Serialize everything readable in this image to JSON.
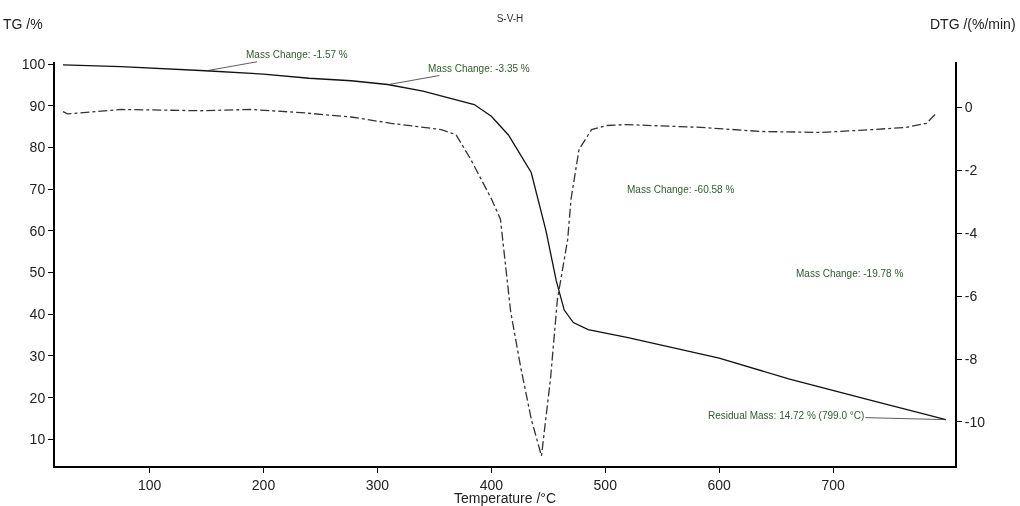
{
  "chart_data": {
    "type": "line",
    "title": "S-V-H",
    "xlabel": "Temperature /°C",
    "ylabel": "TG /%",
    "y2label": "DTG /(%/min)",
    "xlim": [
      17,
      807
    ],
    "xticks": [
      100,
      200,
      300,
      400,
      500,
      600,
      700
    ],
    "ylim": [
      3.6,
      100.5
    ],
    "yticks": [
      10,
      20,
      30,
      40,
      50,
      60,
      70,
      80,
      90,
      100
    ],
    "y2lim": [
      -11.4,
      1.45
    ],
    "y2ticks": [
      -10,
      -8,
      -6,
      -4,
      -2,
      0
    ],
    "grid": false,
    "marker": "none",
    "series": [
      {
        "color": "#111111",
        "line_style": "solid",
        "x": [
          24,
          75,
          149,
          200,
          240,
          277,
          309,
          340,
          385,
          400,
          415,
          435,
          448,
          457,
          464,
          472,
          485,
          520,
          600,
          661,
          730,
          799
        ],
        "values": [
          99.8,
          99.4,
          98.4,
          97.6,
          96.6,
          96.0,
          95.1,
          93.5,
          90.3,
          87.5,
          83,
          74,
          60,
          48,
          41,
          38,
          36.3,
          34.4,
          29.5,
          24.5,
          19.6,
          14.72
        ]
      },
      {
        "color": "#333333",
        "line_style": "dashed",
        "axis": "y2",
        "x": [
          24,
          28,
          75,
          145,
          189,
          233,
          277,
          312,
          356,
          369,
          382,
          400,
          408,
          417,
          426,
          435,
          444,
          452,
          458,
          467,
          470,
          477,
          488,
          501,
          518,
          584,
          637,
          690,
          734,
          764,
          782,
          790
        ],
        "values": [
          -0.13,
          -0.2,
          -0.06,
          -0.1,
          -0.06,
          -0.16,
          -0.3,
          -0.5,
          -0.7,
          -0.86,
          -1.65,
          -2.9,
          -3.55,
          -6.5,
          -8.3,
          -9.9,
          -11.08,
          -8.6,
          -6.1,
          -4.2,
          -2.9,
          -1.33,
          -0.7,
          -0.57,
          -0.54,
          -0.63,
          -0.76,
          -0.79,
          -0.7,
          -0.63,
          -0.5,
          -0.2
        ]
      }
    ],
    "annotations": [
      {
        "text": "Mass Change: -1.57 %",
        "x": 150,
        "y": 98.4
      },
      {
        "text": "Mass Change: -3.35 %",
        "x": 310,
        "y": 95.1
      },
      "Mass Change: -60.58 %",
      "Mass Change: -19.78 %",
      {
        "text": "Residual Mass: 14.72 % (799.0 °C)",
        "x": 799,
        "y": 14.72
      }
    ]
  }
}
